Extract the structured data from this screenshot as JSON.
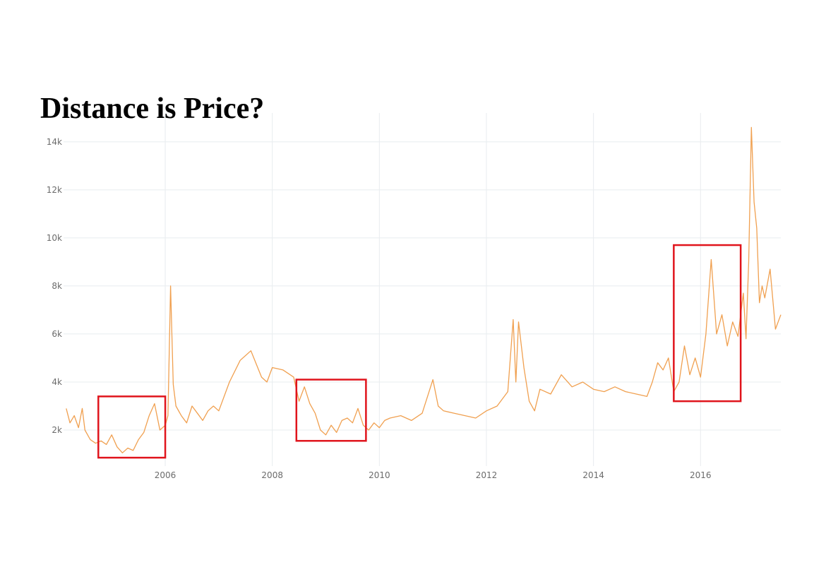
{
  "slide": {
    "title": "Distance is Price?"
  },
  "colors": {
    "line": "#f0a050",
    "grid": "#e8ecef",
    "highlight": "#e0141c",
    "background": "#ffffff",
    "tick_text": "#6b6b6b"
  },
  "chart_data": {
    "type": "line",
    "title": "",
    "xlabel": "",
    "ylabel": "",
    "x_range": [
      2004.1,
      2017.5
    ],
    "ylim": [
      500,
      15200
    ],
    "x_ticks": [
      2006,
      2008,
      2010,
      2012,
      2014,
      2016
    ],
    "x_tick_labels": [
      "2006",
      "2008",
      "2010",
      "2012",
      "2014",
      "2016"
    ],
    "y_ticks": [
      2000,
      4000,
      6000,
      8000,
      10000,
      12000,
      14000
    ],
    "y_tick_labels": [
      "2k",
      "4k",
      "6k",
      "8k",
      "10k",
      "12k",
      "14k"
    ],
    "grid": true,
    "legend": "none",
    "series": [
      {
        "x": [
          2004.15,
          2004.22,
          2004.3,
          2004.38,
          2004.45,
          2004.5,
          2004.6,
          2004.7,
          2004.8,
          2004.9,
          2005.0,
          2005.1,
          2005.2,
          2005.3,
          2005.4,
          2005.5,
          2005.6,
          2005.7,
          2005.8,
          2005.9,
          2006.0,
          2006.05,
          2006.1,
          2006.15,
          2006.2,
          2006.3,
          2006.4,
          2006.5,
          2006.6,
          2006.7,
          2006.8,
          2006.9,
          2007.0,
          2007.2,
          2007.4,
          2007.6,
          2007.8,
          2007.9,
          2008.0,
          2008.2,
          2008.4,
          2008.5,
          2008.6,
          2008.7,
          2008.8,
          2008.9,
          2009.0,
          2009.1,
          2009.2,
          2009.3,
          2009.4,
          2009.5,
          2009.6,
          2009.7,
          2009.8,
          2009.9,
          2010.0,
          2010.1,
          2010.2,
          2010.4,
          2010.6,
          2010.8,
          2011.0,
          2011.1,
          2011.2,
          2011.4,
          2011.6,
          2011.8,
          2012.0,
          2012.2,
          2012.4,
          2012.5,
          2012.55,
          2012.6,
          2012.7,
          2012.8,
          2012.9,
          2013.0,
          2013.2,
          2013.4,
          2013.6,
          2013.8,
          2014.0,
          2014.2,
          2014.4,
          2014.6,
          2014.8,
          2015.0,
          2015.1,
          2015.2,
          2015.3,
          2015.4,
          2015.5,
          2015.6,
          2015.7,
          2015.8,
          2015.9,
          2016.0,
          2016.1,
          2016.2,
          2016.3,
          2016.4,
          2016.5,
          2016.6,
          2016.7,
          2016.8,
          2016.85,
          2016.9,
          2016.95,
          2017.0,
          2017.05,
          2017.1,
          2017.15,
          2017.2,
          2017.3,
          2017.4,
          2017.5
        ],
        "values": [
          2900,
          2300,
          2600,
          2100,
          2900,
          2000,
          1600,
          1450,
          1550,
          1400,
          1800,
          1300,
          1050,
          1250,
          1150,
          1600,
          1900,
          2600,
          3100,
          2000,
          2200,
          2600,
          8000,
          3900,
          3000,
          2600,
          2300,
          3000,
          2700,
          2400,
          2800,
          3000,
          2800,
          4000,
          4900,
          5300,
          4200,
          4000,
          4600,
          4500,
          4200,
          3200,
          3800,
          3100,
          2700,
          2000,
          1800,
          2200,
          1900,
          2400,
          2500,
          2300,
          2900,
          2200,
          2000,
          2300,
          2100,
          2400,
          2500,
          2600,
          2400,
          2700,
          4100,
          3000,
          2800,
          2700,
          2600,
          2500,
          2800,
          3000,
          3600,
          6600,
          4000,
          6500,
          4600,
          3200,
          2800,
          3700,
          3500,
          4300,
          3800,
          4000,
          3700,
          3600,
          3800,
          3600,
          3500,
          3400,
          4000,
          4800,
          4500,
          5000,
          3600,
          4000,
          5500,
          4300,
          5000,
          4200,
          6000,
          9100,
          6000,
          6800,
          5500,
          6500,
          5900,
          7700,
          5800,
          9000,
          14600,
          11500,
          10400,
          7300,
          8000,
          7500,
          8700,
          6200,
          6800
        ]
      }
    ],
    "highlight_boxes": [
      {
        "x_from": 2004.75,
        "x_to": 2006.0,
        "y_from": 850,
        "y_to": 3400
      },
      {
        "x_from": 2008.45,
        "x_to": 2009.75,
        "y_from": 1550,
        "y_to": 4100
      },
      {
        "x_from": 2015.5,
        "x_to": 2016.75,
        "y_from": 3200,
        "y_to": 9700
      }
    ]
  }
}
